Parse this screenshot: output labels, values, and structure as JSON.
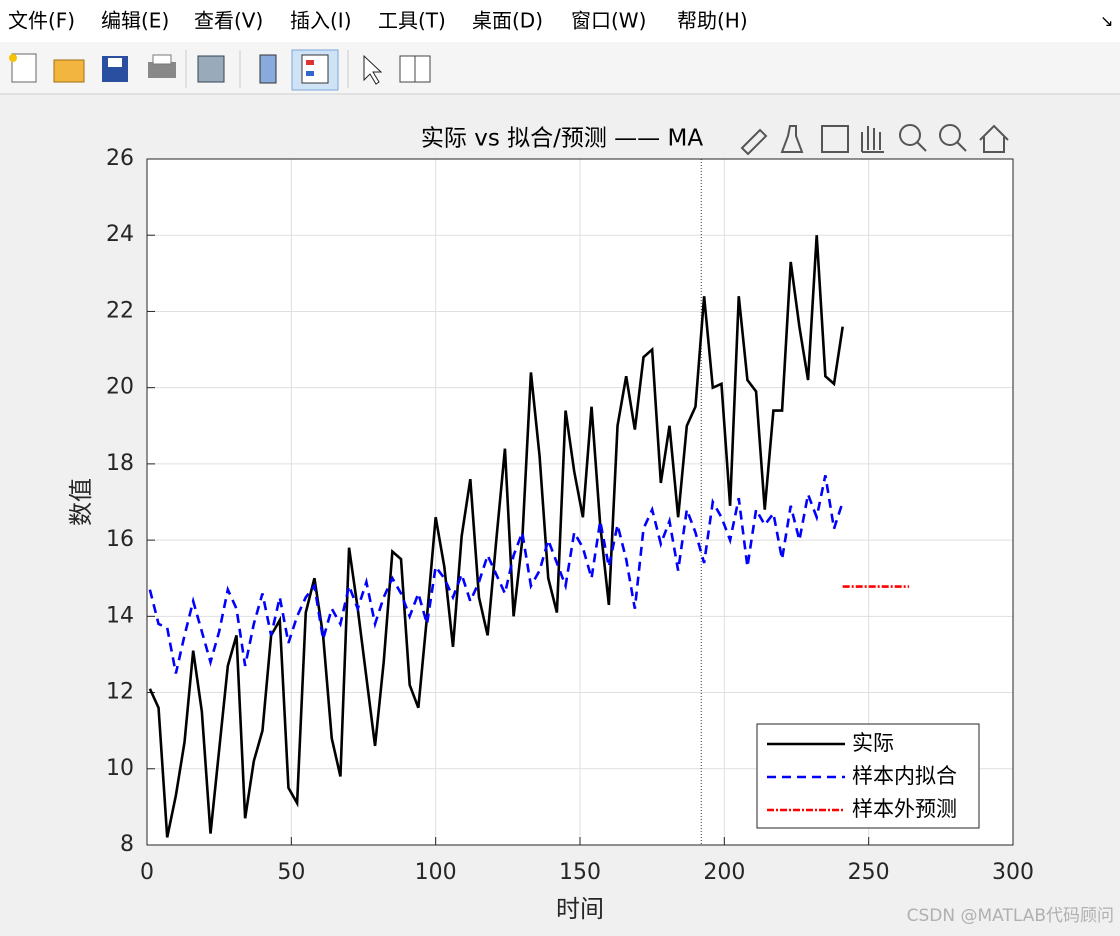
{
  "menu": [
    "文件(F)",
    "编辑(E)",
    "查看(V)",
    "插入(I)",
    "工具(T)",
    "桌面(D)",
    "窗口(W)",
    "帮助(H)"
  ],
  "watermark": "CSDN @MATLAB代码顾问",
  "chart_data": {
    "type": "line",
    "title": "实际 vs 拟合/预测 —— MA",
    "x_label": "时间",
    "y_label": "数值",
    "x": [
      1,
      4,
      7,
      10,
      13,
      16,
      19,
      22,
      25,
      28,
      31,
      34,
      37,
      40,
      43,
      46,
      49,
      52,
      55,
      58,
      61,
      64,
      67,
      70,
      73,
      76,
      79,
      82,
      85,
      88,
      91,
      94,
      97,
      100,
      103,
      106,
      109,
      112,
      115,
      118,
      121,
      124,
      127,
      130,
      133,
      136,
      139,
      142,
      145,
      148,
      151,
      154,
      157,
      160,
      163,
      166,
      169,
      172,
      175,
      178,
      181,
      184,
      187,
      190,
      193,
      196,
      199,
      202,
      205,
      208,
      211,
      214,
      217,
      220,
      223,
      226,
      229,
      232,
      235,
      238,
      241
    ],
    "series": [
      {
        "name": "实际",
        "color": "#000000",
        "dash": "solid",
        "values": [
          12.1,
          11.6,
          8.2,
          9.3,
          10.7,
          13.1,
          11.5,
          8.3,
          10.5,
          12.7,
          13.5,
          8.7,
          10.2,
          11.0,
          13.5,
          13.9,
          9.5,
          9.1,
          14.1,
          15.0,
          13.5,
          10.8,
          9.8,
          15.8,
          14.2,
          12.4,
          10.6,
          12.8,
          15.7,
          15.5,
          12.2,
          11.6,
          14.0,
          16.6,
          15.3,
          13.2,
          16.1,
          17.6,
          14.5,
          13.5,
          16.0,
          18.4,
          14.0,
          16.0,
          20.4,
          18.2,
          15.0,
          14.1,
          19.4,
          17.8,
          16.6,
          19.5,
          16.4,
          14.3,
          19.0,
          20.3,
          18.9,
          20.8,
          21.0,
          17.5,
          19.0,
          16.6,
          19.0,
          19.5,
          22.4,
          20.0,
          20.1,
          16.9,
          22.4,
          20.2,
          19.9,
          16.8,
          19.4,
          19.4,
          23.3,
          21.6,
          20.2,
          24.0,
          20.3,
          20.1,
          21.6
        ]
      },
      {
        "name": "样本内拟合",
        "color": "#0000ff",
        "dash": "dashed",
        "values": [
          14.7,
          13.8,
          13.7,
          12.5,
          13.5,
          14.4,
          13.6,
          12.8,
          13.6,
          14.7,
          14.2,
          12.7,
          13.8,
          14.6,
          13.5,
          14.5,
          13.3,
          14.0,
          14.5,
          14.8,
          13.4,
          14.2,
          13.8,
          14.8,
          14.2,
          14.9,
          13.8,
          14.5,
          15.0,
          14.6,
          14.0,
          14.6,
          13.8,
          15.3,
          15.0,
          14.5,
          15.1,
          14.4,
          14.9,
          15.6,
          15.1,
          14.6,
          15.6,
          16.2,
          14.8,
          15.2,
          16.0,
          15.4,
          14.8,
          16.2,
          15.8,
          15.0,
          16.5,
          15.3,
          16.4,
          15.5,
          14.2,
          16.3,
          16.8,
          15.9,
          16.5,
          15.2,
          16.8,
          16.2,
          15.4,
          17.0,
          16.6,
          16.0,
          17.1,
          15.3,
          16.8,
          16.4,
          16.7,
          15.5,
          16.9,
          16.0,
          17.2,
          16.6,
          17.7,
          16.3,
          17.0
        ]
      },
      {
        "name": "样本外预测",
        "color": "#ff0000",
        "dash": "dashdot",
        "x": [
          241,
          245,
          249,
          253,
          257,
          261,
          264
        ],
        "values": [
          14.78,
          14.78,
          14.78,
          14.78,
          14.78,
          14.78,
          14.78
        ]
      }
    ],
    "divider_x": 192,
    "xlim": [
      0,
      300
    ],
    "xticks": [
      0,
      50,
      100,
      150,
      200,
      250,
      300
    ],
    "ylim": [
      8,
      26
    ],
    "yticks": [
      8,
      10,
      12,
      14,
      16,
      18,
      20,
      22,
      24,
      26
    ],
    "grid": true,
    "legend": "southeast"
  }
}
